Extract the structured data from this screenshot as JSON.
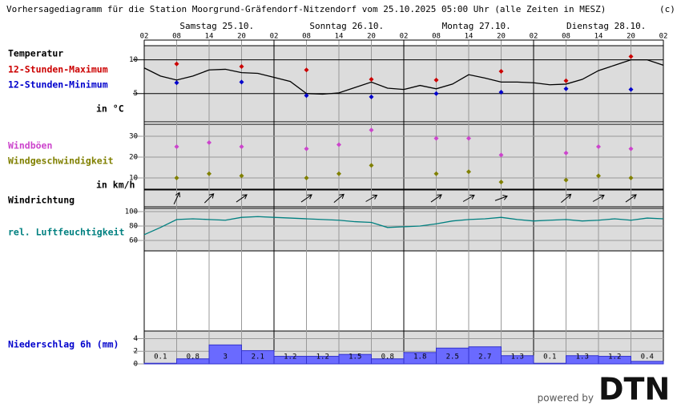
{
  "title": "Vorhersagediagramm für die Station Moorgrund-Gräfendorf-Nitzendorf vom 25.10.2025 05:00 Uhr (alle Zeiten in MESZ)",
  "copyright": "(c)",
  "days": [
    "Samstag 25.10.",
    "Sonntag 26.10.",
    "Montag 27.10.",
    "Dienstag 28.10."
  ],
  "x_axis": {
    "xlim": [
      0,
      96
    ],
    "xticks": [
      {
        "value": 0,
        "label": "02"
      },
      {
        "value": 6,
        "label": "08"
      },
      {
        "value": 12,
        "label": "14"
      },
      {
        "value": 18,
        "label": "20"
      },
      {
        "value": 24,
        "label": "02"
      },
      {
        "value": 30,
        "label": "08"
      },
      {
        "value": 36,
        "label": "14"
      },
      {
        "value": 42,
        "label": "20"
      },
      {
        "value": 48,
        "label": "02"
      },
      {
        "value": 54,
        "label": "08"
      },
      {
        "value": 60,
        "label": "14"
      },
      {
        "value": 66,
        "label": "20"
      },
      {
        "value": 72,
        "label": "02"
      },
      {
        "value": 78,
        "label": "08"
      },
      {
        "value": 84,
        "label": "14"
      },
      {
        "value": 90,
        "label": "20"
      },
      {
        "value": 96,
        "label": "02"
      }
    ]
  },
  "chart_data": [
    {
      "type": "line-markers",
      "label": "Temperatur",
      "unit_label": "in °C",
      "ylim": [
        0.8,
        12.1
      ],
      "yticks": [
        5,
        10
      ],
      "line": {
        "color": "#000000",
        "x": [
          0,
          3,
          6,
          9,
          12,
          15,
          18,
          21,
          24,
          27,
          30,
          33,
          36,
          39,
          42,
          45,
          48,
          51,
          54,
          57,
          60,
          63,
          66,
          69,
          72,
          75,
          78,
          81,
          84,
          87,
          90,
          93,
          96
        ],
        "values": [
          8.8,
          7.6,
          7.0,
          7.6,
          8.5,
          8.6,
          8.1,
          8.0,
          7.4,
          6.8,
          5.0,
          4.9,
          5.1,
          5.9,
          6.7,
          5.8,
          5.6,
          6.2,
          5.7,
          6.4,
          7.8,
          7.3,
          6.7,
          6.7,
          6.6,
          6.3,
          6.4,
          7.1,
          8.4,
          9.2,
          10.0,
          10.0,
          9.2
        ]
      },
      "series": [
        {
          "name": "12-Stunden-Maximum",
          "color": "#cc0000",
          "x": [
            6,
            18,
            30,
            42,
            54,
            66,
            78,
            90
          ],
          "values": [
            9.4,
            9.0,
            8.5,
            7.1,
            7.0,
            8.3,
            6.9,
            10.5
          ]
        },
        {
          "name": "12-Stunden-Minimum",
          "color": "#0000cc",
          "x": [
            6,
            18,
            30,
            42,
            54,
            66,
            78,
            90
          ],
          "values": [
            6.6,
            6.7,
            4.7,
            4.5,
            5.0,
            5.2,
            5.7,
            5.6
          ]
        }
      ]
    },
    {
      "type": "markers",
      "unit_label": "in km/h",
      "ylim": [
        4.6,
        35.8
      ],
      "yticks": [
        10,
        20,
        30
      ],
      "series": [
        {
          "name": "Windböen",
          "color": "#cc44cc",
          "x": [
            6,
            12,
            18,
            30,
            36,
            42,
            54,
            60,
            66,
            78,
            84,
            90
          ],
          "values": [
            25,
            27,
            25,
            24,
            26,
            33,
            29,
            29,
            21,
            22,
            25,
            24
          ]
        },
        {
          "name": "Windgeschwindigkeit",
          "color": "#808000",
          "x": [
            6,
            12,
            18,
            30,
            36,
            42,
            54,
            60,
            66,
            78,
            84,
            90
          ],
          "values": [
            10,
            12,
            11,
            10,
            12,
            16,
            12,
            13,
            8,
            9,
            11,
            10
          ]
        }
      ]
    },
    {
      "type": "arrows",
      "label": "Windrichtung",
      "x": [
        6,
        12,
        18,
        30,
        36,
        42,
        54,
        60,
        66,
        78,
        84,
        90
      ],
      "values": [
        205,
        225,
        235,
        235,
        230,
        240,
        235,
        240,
        250,
        230,
        240,
        235
      ]
    },
    {
      "type": "line",
      "label": "rel. Luftfeuchtigkeit",
      "color": "#008080",
      "ylim": [
        45.6,
        104.4
      ],
      "yticks": [
        60,
        80,
        100
      ],
      "x": [
        0,
        3,
        6,
        9,
        12,
        15,
        18,
        21,
        24,
        27,
        30,
        33,
        36,
        39,
        42,
        45,
        48,
        51,
        54,
        57,
        60,
        63,
        66,
        69,
        72,
        75,
        78,
        81,
        84,
        87,
        90,
        93,
        96
      ],
      "values": [
        68,
        78,
        89,
        90,
        89,
        88,
        92,
        93,
        92,
        91,
        90,
        89,
        88,
        86,
        85,
        78,
        79,
        80,
        83,
        87,
        89,
        90,
        92,
        89,
        87,
        88,
        89,
        87,
        88,
        90,
        88,
        91,
        90
      ]
    },
    {
      "type": "histogram",
      "label": "Niederschlag 6h (mm)",
      "color": "#6a6aff",
      "ylim": [
        0,
        5.2
      ],
      "yticks": [
        0,
        2,
        4
      ],
      "bins": [
        0,
        6,
        12,
        18,
        24,
        30,
        36,
        42,
        48,
        54,
        60,
        66,
        72,
        78,
        84,
        90,
        96
      ],
      "values": [
        0.1,
        0.8,
        3,
        2.1,
        1.2,
        1.2,
        1.5,
        0.8,
        1.8,
        2.5,
        2.7,
        1.3,
        0.1,
        1.3,
        1.2,
        0.4
      ]
    }
  ],
  "footer": {
    "powered": "powered by",
    "logo": "DTN"
  }
}
